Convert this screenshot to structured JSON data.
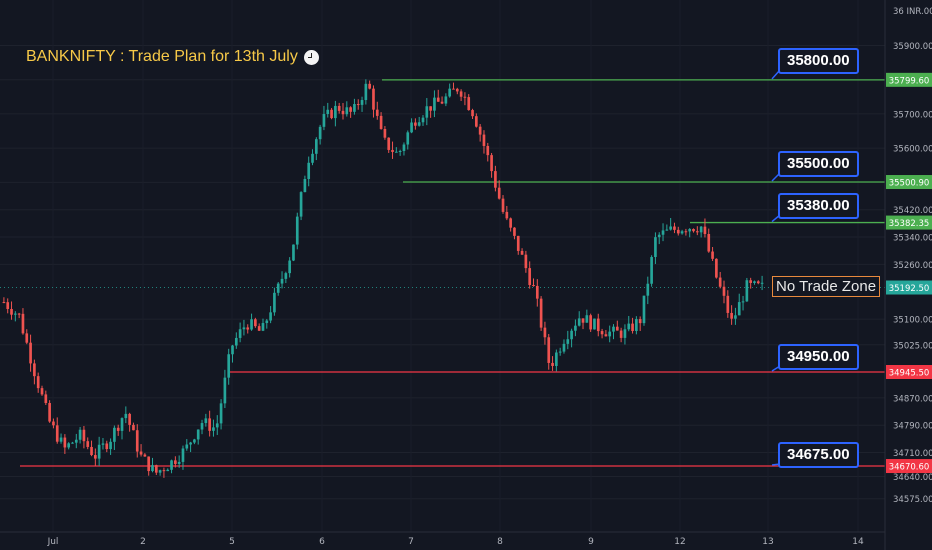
{
  "title": "BANKNIFTY : Trade Plan for 13th July",
  "currency_label": "36 INR.00",
  "no_trade_zone_label": "No Trade Zone",
  "chart_data": {
    "type": "candlestick",
    "symbol": "BANKNIFTY",
    "ylim": [
      34525,
      35980
    ],
    "y_ticks": [
      35900,
      35800,
      35700,
      35600,
      35500,
      35420,
      35340,
      35260,
      35100,
      35025,
      34870,
      34790,
      34710,
      34640,
      34575
    ],
    "x_tick_labels": [
      "Jul",
      "2",
      "5",
      "6",
      "7",
      "8",
      "9",
      "12",
      "13",
      "14"
    ],
    "levels": [
      {
        "label": "35800.00",
        "axis_value": "35799.60",
        "value": 35799.6,
        "color": "#4caf50"
      },
      {
        "label": "35500.00",
        "axis_value": "35500.90",
        "value": 35500.9,
        "color": "#4caf50"
      },
      {
        "label": "35380.00",
        "axis_value": "35382.35",
        "value": 35382.35,
        "color": "#4caf50"
      },
      {
        "label": "34950.00",
        "axis_value": "34945.50",
        "value": 34945.5,
        "color": "#f23645"
      },
      {
        "label": "34675.00",
        "axis_value": "34670.60",
        "value": 34670.6,
        "color": "#f23645"
      }
    ],
    "last_price": {
      "label": "35192.50",
      "value": 35192.5
    },
    "no_trade_zone": {
      "low": 35050,
      "high": 35380
    },
    "colors": {
      "up": "#26a69a",
      "down": "#ef5350",
      "background": "#131722",
      "callout_border": "#2d63ff"
    },
    "close_path": [
      35150,
      35110,
      34950,
      34800,
      34720,
      34760,
      34700,
      34750,
      34830,
      34700,
      34650,
      34680,
      34720,
      34800,
      34780,
      35020,
      35090,
      35060,
      35180,
      35300,
      35560,
      35680,
      35720,
      35700,
      35790,
      35620,
      35580,
      35680,
      35720,
      35740,
      35780,
      35700,
      35560,
      35400,
      35300,
      35180,
      34960,
      35050,
      35110,
      35080,
      35060,
      35060,
      35100,
      35340,
      35360,
      35370,
      35370,
      35220,
      35090,
      35195,
      35192.5
    ]
  }
}
